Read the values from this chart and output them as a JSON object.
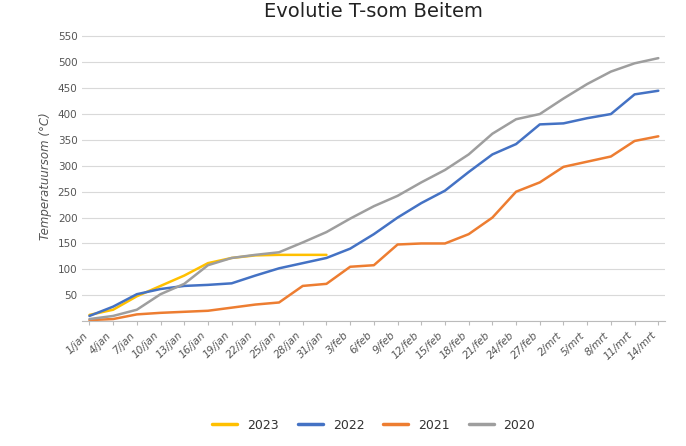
{
  "title": "Evolutie T-som Beitem",
  "ylabel": "Temperatuursom (°C)",
  "ylim": [
    0,
    560
  ],
  "yticks": [
    0,
    50,
    100,
    150,
    200,
    250,
    300,
    350,
    400,
    450,
    500,
    550
  ],
  "x_labels": [
    "1/jan",
    "4/jan",
    "7/jan",
    "10/jan",
    "13/jan",
    "16/jan",
    "19/jan",
    "22/jan",
    "25/jan",
    "28/jan",
    "31/jan",
    "3/feb",
    "6/feb",
    "9/feb",
    "12/feb",
    "15/feb",
    "18/feb",
    "21/feb",
    "24/feb",
    "27/feb",
    "2/mrt",
    "5/mrt",
    "8/mrt",
    "11/mrt",
    "14/mrt"
  ],
  "series": {
    "2023": {
      "color": "#FFC000",
      "values": [
        12,
        22,
        48,
        68,
        88,
        112,
        122,
        127,
        128,
        128,
        128,
        null,
        null,
        null,
        null,
        null,
        null,
        null,
        null,
        null,
        null,
        null,
        null,
        null,
        null
      ]
    },
    "2022": {
      "color": "#4472C4",
      "values": [
        10,
        28,
        52,
        62,
        68,
        70,
        73,
        88,
        102,
        112,
        122,
        140,
        168,
        200,
        228,
        252,
        288,
        322,
        342,
        380,
        382,
        392,
        400,
        438,
        445
      ]
    },
    "2021": {
      "color": "#ED7D31",
      "values": [
        2,
        4,
        13,
        16,
        18,
        20,
        26,
        32,
        36,
        68,
        72,
        105,
        108,
        148,
        150,
        150,
        168,
        200,
        250,
        268,
        298,
        308,
        318,
        348,
        357
      ]
    },
    "2020": {
      "color": "#9E9E9E",
      "values": [
        4,
        10,
        22,
        52,
        72,
        108,
        122,
        128,
        133,
        152,
        172,
        198,
        222,
        242,
        268,
        292,
        322,
        362,
        390,
        400,
        430,
        458,
        482,
        498,
        508
      ]
    }
  },
  "legend_order": [
    "2023",
    "2022",
    "2021",
    "2020"
  ],
  "background_color": "#ffffff",
  "grid_color": "#d9d9d9",
  "title_fontsize": 14,
  "label_fontsize": 8.5,
  "tick_fontsize": 7.5,
  "legend_fontsize": 9,
  "linewidth": 1.8
}
